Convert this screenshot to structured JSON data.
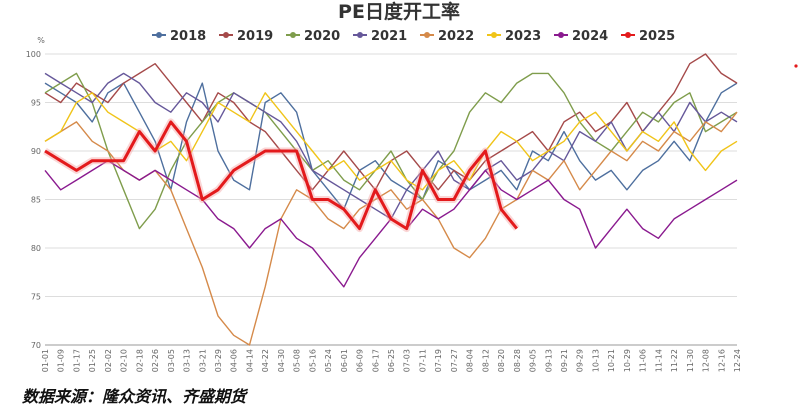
{
  "chart_data": {
    "type": "line",
    "title": "PE日度开工率",
    "unit": "%",
    "source": "数据来源：隆众资讯、齐盛期货",
    "ylim": [
      70,
      100
    ],
    "y_ticks": [
      "70",
      "75",
      "80",
      "85",
      "90",
      "95",
      "100"
    ],
    "x_ticks": [
      "01-01",
      "01-09",
      "01-17",
      "01-25",
      "02-02",
      "02-10",
      "02-18",
      "02-26",
      "03-05",
      "03-13",
      "03-21",
      "03-29",
      "04-06",
      "04-14",
      "04-22",
      "04-30",
      "05-08",
      "05-16",
      "05-24",
      "06-01",
      "06-09",
      "06-17",
      "06-25",
      "07-03",
      "07-11",
      "07-19",
      "07-27",
      "08-04",
      "08-12",
      "08-20",
      "08-28",
      "09-05",
      "09-13",
      "09-21",
      "09-29",
      "10-13",
      "10-21",
      "10-29",
      "11-06",
      "11-14",
      "11-22",
      "11-30",
      "12-08",
      "12-16",
      "12-24"
    ],
    "legend_position": "top",
    "grid": true,
    "series": [
      {
        "name": "2018",
        "color": "#4e6f9e",
        "values": [
          97,
          96,
          95,
          93,
          96,
          97,
          94,
          91,
          86,
          93,
          97,
          90,
          87,
          86,
          95,
          96,
          94,
          88,
          86,
          84,
          88,
          89,
          87,
          86,
          85,
          89,
          88,
          86,
          87,
          88,
          86,
          90,
          89,
          92,
          89,
          87,
          88,
          86,
          88,
          89,
          91,
          89,
          93,
          96,
          97
        ]
      },
      {
        "name": "2019",
        "color": "#a54a4a",
        "values": [
          96,
          95,
          97,
          96,
          95,
          97,
          98,
          99,
          97,
          95,
          93,
          96,
          95,
          93,
          92,
          90,
          88,
          86,
          88,
          90,
          88,
          86,
          89,
          90,
          88,
          86,
          88,
          87,
          89,
          90,
          91,
          92,
          90,
          93,
          94,
          92,
          93,
          95,
          92,
          94,
          96,
          99,
          100,
          98,
          97
        ]
      },
      {
        "name": "2020",
        "color": "#7f9d4c",
        "values": [
          96,
          97,
          98,
          95,
          90,
          86,
          82,
          84,
          88,
          91,
          93,
          95,
          96,
          95,
          94,
          92,
          90,
          88,
          89,
          87,
          86,
          88,
          90,
          87,
          85,
          88,
          90,
          94,
          96,
          95,
          97,
          98,
          98,
          96,
          93,
          91,
          90,
          92,
          94,
          93,
          95,
          96,
          92,
          93,
          94
        ]
      },
      {
        "name": "2021",
        "color": "#66589a",
        "values": [
          98,
          97,
          96,
          95,
          97,
          98,
          97,
          95,
          94,
          96,
          95,
          93,
          96,
          95,
          94,
          93,
          91,
          88,
          87,
          86,
          85,
          84,
          83,
          86,
          88,
          90,
          87,
          86,
          88,
          89,
          87,
          88,
          90,
          89,
          92,
          91,
          93,
          90,
          92,
          94,
          92,
          95,
          93,
          94,
          93
        ]
      },
      {
        "name": "2022",
        "color": "#d58a4a",
        "values": [
          91,
          92,
          93,
          91,
          90,
          88,
          87,
          88,
          86,
          82,
          78,
          73,
          71,
          70,
          76,
          83,
          86,
          85,
          83,
          82,
          84,
          85,
          86,
          84,
          85,
          83,
          80,
          79,
          81,
          84,
          85,
          88,
          87,
          89,
          86,
          88,
          90,
          89,
          91,
          90,
          92,
          91,
          93,
          92,
          94
        ]
      },
      {
        "name": "2023",
        "color": "#f0c419",
        "values": [
          91,
          92,
          95,
          96,
          94,
          93,
          92,
          90,
          91,
          89,
          92,
          95,
          94,
          93,
          96,
          94,
          92,
          90,
          88,
          89,
          87,
          88,
          89,
          87,
          86,
          88,
          89,
          87,
          90,
          92,
          91,
          89,
          90,
          91,
          93,
          94,
          92,
          90,
          92,
          91,
          93,
          90,
          88,
          90,
          91
        ]
      },
      {
        "name": "2024",
        "color": "#8a1a8f",
        "values": [
          88,
          86,
          87,
          88,
          89,
          88,
          87,
          88,
          87,
          86,
          85,
          83,
          82,
          80,
          82,
          83,
          81,
          80,
          78,
          76,
          79,
          81,
          83,
          82,
          84,
          83,
          84,
          86,
          88,
          86,
          85,
          86,
          87,
          85,
          84,
          80,
          82,
          84,
          82,
          81,
          83,
          84,
          85,
          86,
          87
        ]
      },
      {
        "name": "2025",
        "color": "#e31a1c",
        "values": [
          90,
          89,
          88,
          89,
          89,
          89,
          92,
          90,
          93,
          91,
          85,
          86,
          88,
          89,
          90,
          90,
          90,
          85,
          85,
          84,
          82,
          86,
          83,
          82,
          88,
          85,
          85,
          88,
          90,
          84,
          82
        ]
      }
    ]
  }
}
